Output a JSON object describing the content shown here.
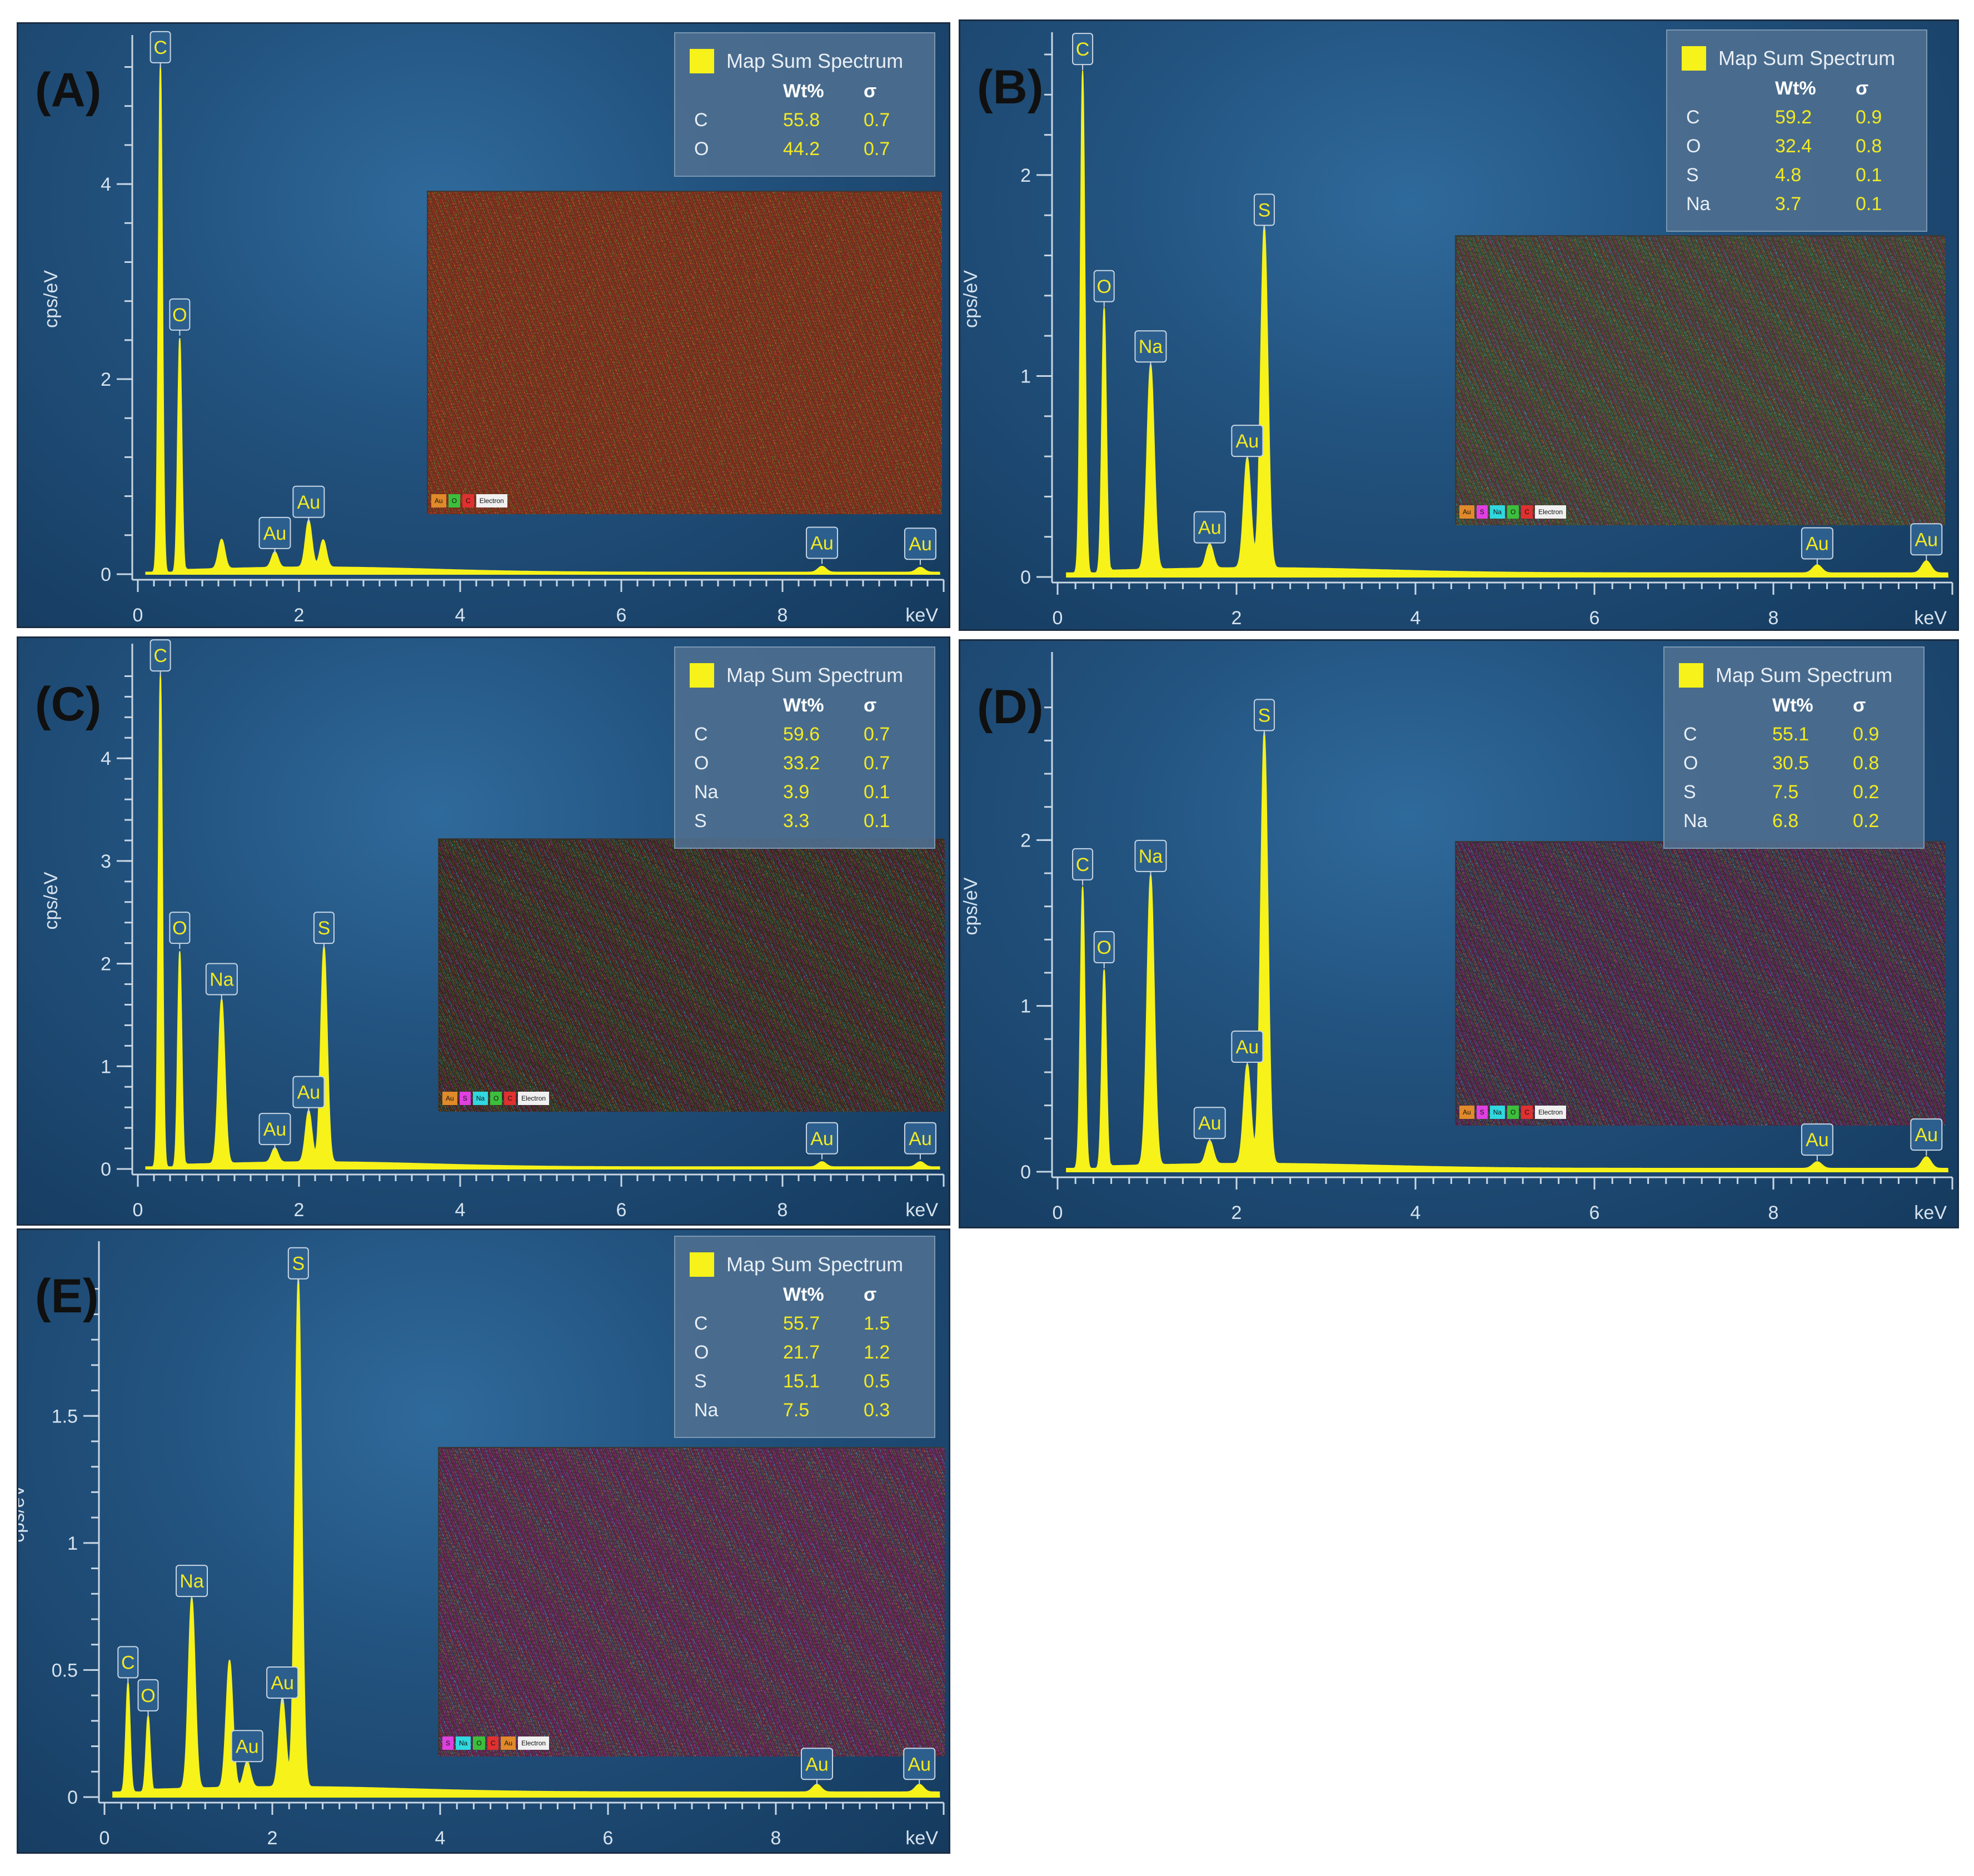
{
  "chart_data": [
    {
      "type": "line",
      "panel_label": "(A)",
      "xlabel": "keV",
      "ylabel": "cps/eV",
      "xlim": [
        0,
        10
      ],
      "ylim": [
        0,
        5.3
      ],
      "x_ticks": [
        "0",
        "2",
        "4",
        "6",
        "8"
      ],
      "y_ticks": [
        "0",
        "2",
        "4"
      ],
      "y_tick_values": [
        0,
        2,
        4
      ],
      "peaks": [
        {
          "x": 0.28,
          "y": 5.2,
          "label": "C"
        },
        {
          "x": 0.52,
          "y": 2.4,
          "label": "O"
        },
        {
          "x": 1.04,
          "y": 0.3,
          "label": ""
        },
        {
          "x": 1.7,
          "y": 0.16,
          "label": "Au"
        },
        {
          "x": 2.12,
          "y": 0.48,
          "label": "Au"
        },
        {
          "x": 2.3,
          "y": 0.28,
          "label": ""
        },
        {
          "x": 8.49,
          "y": 0.06,
          "label": "Au"
        },
        {
          "x": 9.71,
          "y": 0.05,
          "label": "Au"
        }
      ],
      "legend": {
        "title": "Map Sum Spectrum",
        "headers": [
          "Wt%",
          "σ"
        ],
        "rows": [
          [
            "C",
            "55.8",
            "0.7"
          ],
          [
            "O",
            "44.2",
            "0.7"
          ]
        ]
      },
      "map_key": [
        "Au",
        "O",
        "C",
        "Electron"
      ],
      "map_tint": "#6e2a1d"
    },
    {
      "type": "line",
      "panel_label": "(B)",
      "xlabel": "keV",
      "ylabel": "cps/eV",
      "xlim": [
        0,
        10
      ],
      "ylim": [
        0,
        2.6
      ],
      "x_ticks": [
        "0",
        "2",
        "4",
        "6",
        "8"
      ],
      "y_ticks": [
        "0",
        "1",
        "2"
      ],
      "y_tick_values": [
        0,
        1,
        2
      ],
      "peaks": [
        {
          "x": 0.28,
          "y": 2.5,
          "label": "C"
        },
        {
          "x": 0.52,
          "y": 1.32,
          "label": "O"
        },
        {
          "x": 1.04,
          "y": 1.02,
          "label": "Na"
        },
        {
          "x": 1.7,
          "y": 0.12,
          "label": "Au"
        },
        {
          "x": 2.12,
          "y": 0.55,
          "label": "Au"
        },
        {
          "x": 2.31,
          "y": 1.7,
          "label": "S"
        },
        {
          "x": 8.49,
          "y": 0.04,
          "label": "Au"
        },
        {
          "x": 9.71,
          "y": 0.06,
          "label": "Au"
        }
      ],
      "legend": {
        "title": "Map Sum Spectrum",
        "headers": [
          "Wt%",
          "σ"
        ],
        "rows": [
          [
            "C",
            "59.2",
            "0.9"
          ],
          [
            "O",
            "32.4",
            "0.8"
          ],
          [
            "S",
            "4.8",
            "0.1"
          ],
          [
            "Na",
            "3.7",
            "0.1"
          ]
        ]
      },
      "map_key": [
        "Au",
        "S",
        "Na",
        "O",
        "C",
        "Electron"
      ],
      "map_tint": "#3a3a30"
    },
    {
      "type": "line",
      "panel_label": "(C)",
      "xlabel": "keV",
      "ylabel": "cps/eV",
      "xlim": [
        0,
        10
      ],
      "ylim": [
        0,
        4.9
      ],
      "x_ticks": [
        "0",
        "2",
        "4",
        "6",
        "8"
      ],
      "y_ticks": [
        "0",
        "1",
        "2",
        "3",
        "4"
      ],
      "y_tick_values": [
        0,
        1,
        2,
        3,
        4
      ],
      "peaks": [
        {
          "x": 0.28,
          "y": 4.8,
          "label": "C"
        },
        {
          "x": 0.52,
          "y": 2.1,
          "label": "O"
        },
        {
          "x": 1.04,
          "y": 1.6,
          "label": "Na"
        },
        {
          "x": 1.7,
          "y": 0.14,
          "label": "Au"
        },
        {
          "x": 2.12,
          "y": 0.5,
          "label": "Au"
        },
        {
          "x": 2.31,
          "y": 2.1,
          "label": "S"
        },
        {
          "x": 8.49,
          "y": 0.05,
          "label": "Au"
        },
        {
          "x": 9.71,
          "y": 0.05,
          "label": "Au"
        }
      ],
      "legend": {
        "title": "Map Sum Spectrum",
        "headers": [
          "Wt%",
          "σ"
        ],
        "rows": [
          [
            "C",
            "59.6",
            "0.7"
          ],
          [
            "O",
            "33.2",
            "0.7"
          ],
          [
            "Na",
            "3.9",
            "0.1"
          ],
          [
            "S",
            "3.3",
            "0.1"
          ]
        ]
      },
      "map_key": [
        "Au",
        "S",
        "Na",
        "O",
        "C",
        "Electron"
      ],
      "map_tint": "#2e2420"
    },
    {
      "type": "line",
      "panel_label": "(D)",
      "xlabel": "keV",
      "ylabel": "cps/eV",
      "xlim": [
        0,
        10
      ],
      "ylim": [
        0,
        3.0
      ],
      "x_ticks": [
        "0",
        "2",
        "4",
        "6",
        "8"
      ],
      "y_ticks": [
        "0",
        "1",
        "2"
      ],
      "y_tick_values": [
        0,
        1,
        2
      ],
      "peaks": [
        {
          "x": 0.28,
          "y": 1.7,
          "label": "C"
        },
        {
          "x": 0.52,
          "y": 1.2,
          "label": "O"
        },
        {
          "x": 1.04,
          "y": 1.75,
          "label": "Na"
        },
        {
          "x": 1.7,
          "y": 0.14,
          "label": "Au"
        },
        {
          "x": 2.12,
          "y": 0.6,
          "label": "Au"
        },
        {
          "x": 2.31,
          "y": 2.6,
          "label": "S"
        },
        {
          "x": 8.49,
          "y": 0.04,
          "label": "Au"
        },
        {
          "x": 9.71,
          "y": 0.07,
          "label": "Au"
        }
      ],
      "legend": {
        "title": "Map Sum Spectrum",
        "headers": [
          "Wt%",
          "σ"
        ],
        "rows": [
          [
            "C",
            "55.1",
            "0.9"
          ],
          [
            "O",
            "30.5",
            "0.8"
          ],
          [
            "S",
            "7.5",
            "0.2"
          ],
          [
            "Na",
            "6.8",
            "0.2"
          ]
        ]
      },
      "map_key": [
        "Au",
        "S",
        "Na",
        "O",
        "C",
        "Electron"
      ],
      "map_tint": "#3a2440"
    },
    {
      "type": "line",
      "panel_label": "(E)",
      "xlabel": "keV",
      "ylabel": "cps/eV",
      "xlim": [
        0,
        10
      ],
      "ylim": [
        0,
        2.1
      ],
      "x_ticks": [
        "0",
        "2",
        "4",
        "6",
        "8"
      ],
      "y_ticks": [
        "0",
        "0.5",
        "1",
        "1.5"
      ],
      "y_tick_values": [
        0,
        0.5,
        1,
        1.5
      ],
      "peaks": [
        {
          "x": 0.28,
          "y": 0.43,
          "label": "C"
        },
        {
          "x": 0.52,
          "y": 0.3,
          "label": "O"
        },
        {
          "x": 1.04,
          "y": 0.75,
          "label": "Na"
        },
        {
          "x": 1.49,
          "y": 0.5,
          "label": ""
        },
        {
          "x": 1.7,
          "y": 0.1,
          "label": "Au"
        },
        {
          "x": 2.12,
          "y": 0.35,
          "label": "Au"
        },
        {
          "x": 2.31,
          "y": 2.0,
          "label": "S"
        },
        {
          "x": 8.49,
          "y": 0.03,
          "label": "Au"
        },
        {
          "x": 9.71,
          "y": 0.03,
          "label": "Au"
        }
      ],
      "legend": {
        "title": "Map Sum Spectrum",
        "headers": [
          "Wt%",
          "σ"
        ],
        "rows": [
          [
            "C",
            "55.7",
            "1.5"
          ],
          [
            "O",
            "21.7",
            "1.2"
          ],
          [
            "S",
            "15.1",
            "0.5"
          ],
          [
            "Na",
            "7.5",
            "0.3"
          ]
        ]
      },
      "map_key": [
        "S",
        "Na",
        "O",
        "C",
        "Au",
        "Electron"
      ],
      "map_tint": "#4a2446"
    }
  ],
  "colors": {
    "spectrum": "#f6f21a",
    "panel_bg": "#22527e",
    "legend_value": "#f2ea22",
    "map_key": {
      "Au": "#e08a2a",
      "O": "#3cbf3c",
      "C": "#e03030",
      "S": "#e040e0",
      "Na": "#30d8e0",
      "Electron": "#f0f0f0"
    }
  }
}
